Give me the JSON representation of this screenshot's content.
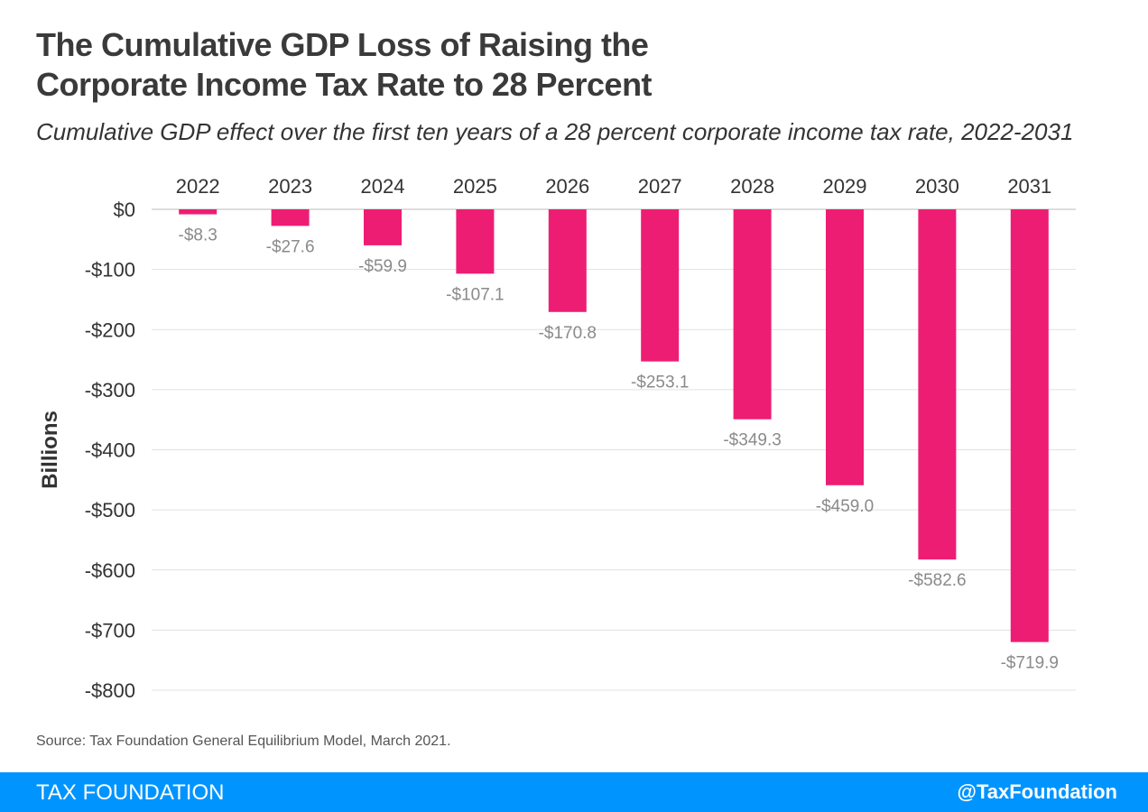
{
  "header": {
    "title_line1": "The Cumulative GDP Loss of Raising the",
    "title_line2": "Corporate Income Tax Rate to 28 Percent",
    "subtitle": "Cumulative GDP effect over the first ten years of a 28 percent corporate income tax rate, 2022-2031"
  },
  "chart_data": {
    "type": "bar",
    "title": "The Cumulative GDP Loss of Raising the Corporate Income Tax Rate to 28 Percent",
    "subtitle": "Cumulative GDP effect over the first ten years of a 28 percent corporate income tax rate, 2022-2031",
    "xlabel": "",
    "ylabel": "Billions",
    "categories": [
      "2022",
      "2023",
      "2024",
      "2025",
      "2026",
      "2027",
      "2028",
      "2029",
      "2030",
      "2031"
    ],
    "values": [
      -8.3,
      -27.6,
      -59.9,
      -107.1,
      -170.8,
      -253.1,
      -349.3,
      -459.0,
      -582.6,
      -719.9
    ],
    "data_labels": [
      "-$8.3",
      "-$27.6",
      "-$59.9",
      "-$107.1",
      "-$170.8",
      "-$253.1",
      "-$349.3",
      "-$459.0",
      "-$582.6",
      "-$719.9"
    ],
    "ylim": [
      -800,
      0
    ],
    "yticks": [
      0,
      -100,
      -200,
      -300,
      -400,
      -500,
      -600,
      -700,
      -800
    ],
    "ytick_labels": [
      "$0",
      "-$100",
      "-$200",
      "-$300",
      "-$400",
      "-$500",
      "-$600",
      "-$700",
      "-$800"
    ],
    "grid": true,
    "category_axis_position": "top",
    "bar_color": "#ee1d74"
  },
  "source": "Source: Tax Foundation General Equilibrium Model, March 2021.",
  "footer": {
    "left": "TAX FOUNDATION",
    "right": "@TaxFoundation",
    "color": "#0094ff"
  }
}
